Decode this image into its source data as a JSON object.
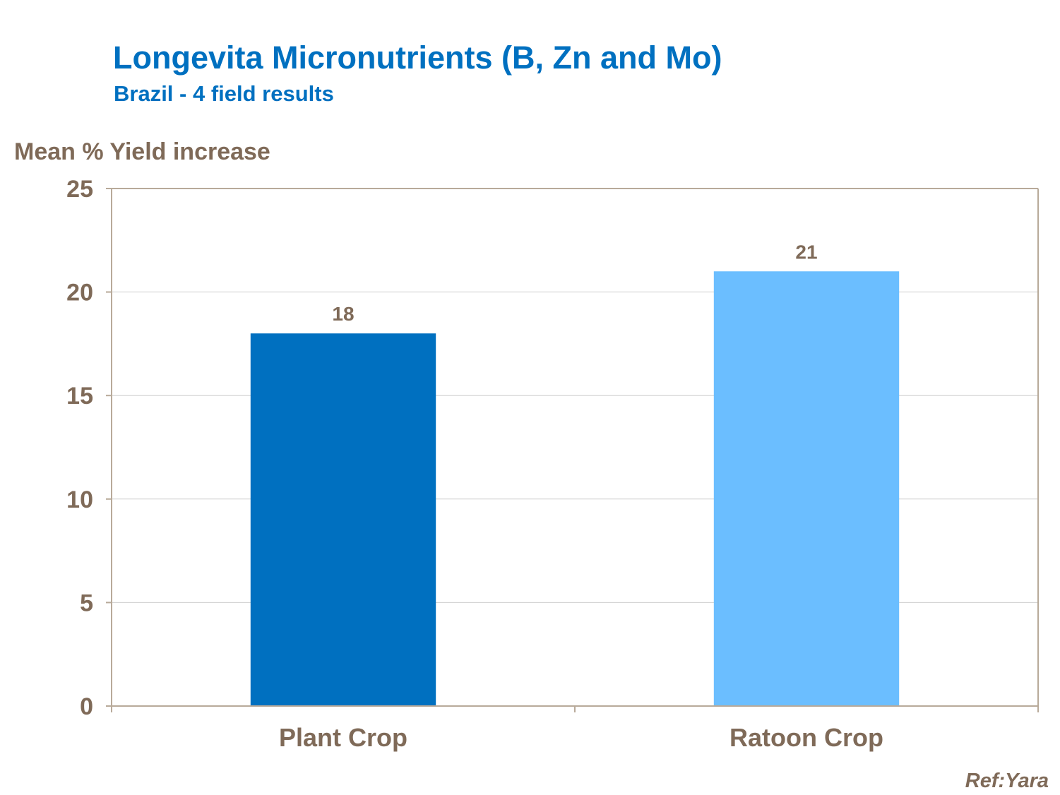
{
  "chart_data": {
    "type": "bar",
    "title": "Longevita Micronutrients (B, Zn and Mo)",
    "subtitle": "Brazil - 4 field results",
    "ylabel": "Mean % Yield increase",
    "categories": [
      "Plant Crop",
      "Ratoon Crop"
    ],
    "values": [
      18,
      21
    ],
    "data_labels": [
      "18",
      "21"
    ],
    "bar_colors": [
      "#0070c0",
      "#6bbeff"
    ],
    "ylim": [
      0,
      25
    ],
    "yticks": [
      0,
      5,
      10,
      15,
      20,
      25
    ],
    "ytick_labels": [
      "0",
      "5",
      "10",
      "15",
      "20",
      "25"
    ],
    "grid": true,
    "legend": "none"
  },
  "footer": {
    "ref": "Ref:Yara"
  },
  "colors": {
    "title": "#0070c0",
    "text": "#7f6a58",
    "axis": "#b8aa9a",
    "grid": "#cfcfcf"
  }
}
